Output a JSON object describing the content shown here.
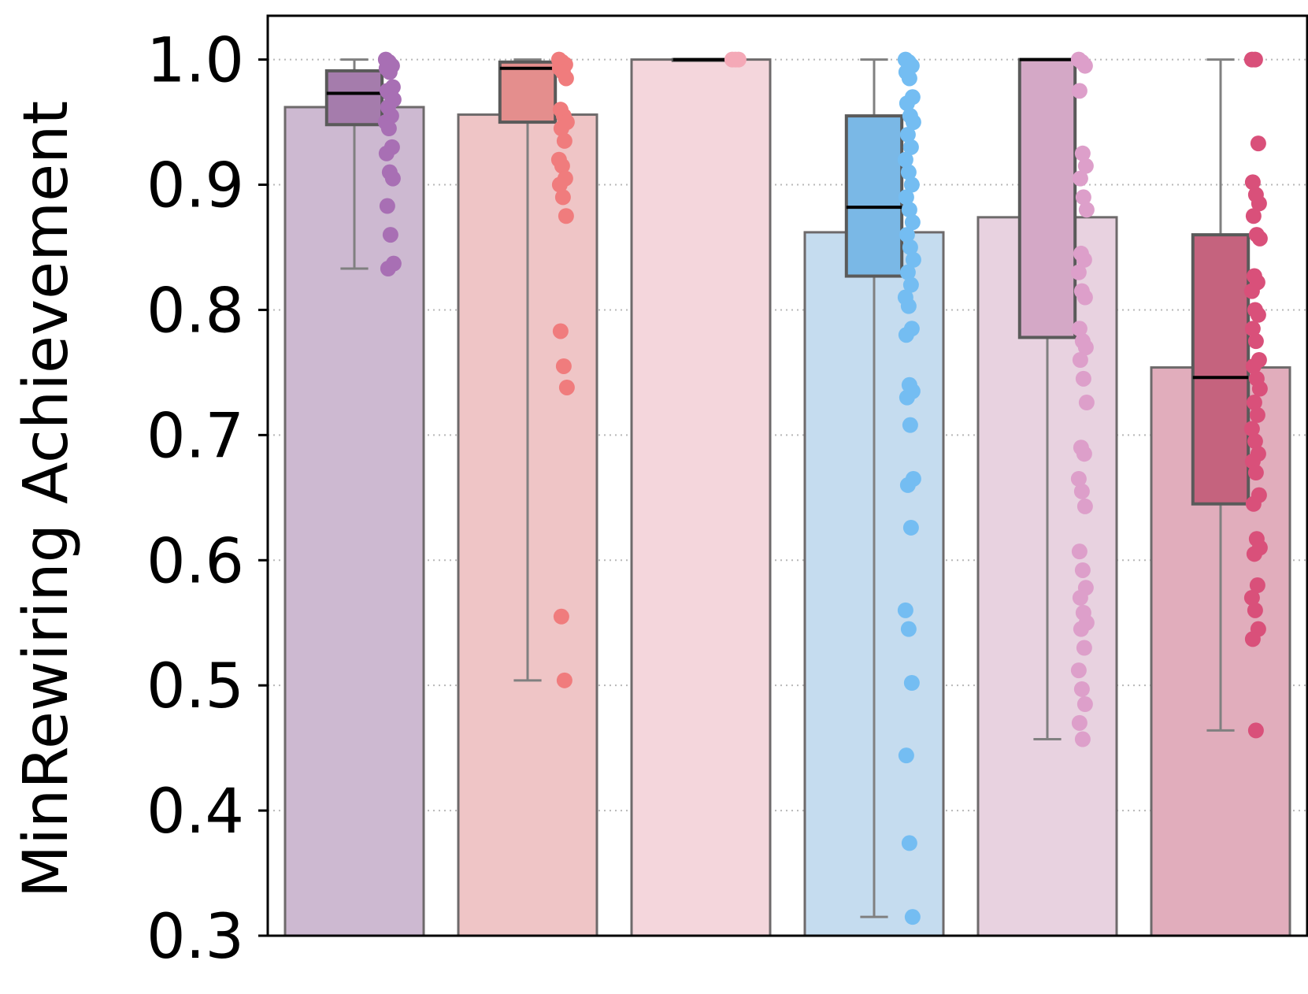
{
  "chart_data": {
    "type": "bar",
    "title": "",
    "xlabel": "",
    "ylabel": "MinRewiring Achievement",
    "ylim": [
      0.3,
      1.035
    ],
    "yticks": [
      "0.3",
      "0.4",
      "0.5",
      "0.6",
      "0.7",
      "0.8",
      "0.9",
      "1.0"
    ],
    "grid": "horizontal dotted",
    "legend": "none",
    "categories": [
      "",
      "",
      "",
      "",
      "",
      ""
    ],
    "series": [
      {
        "bar_value": 0.962,
        "bar_color": "#cdb9d1",
        "box": {
          "whisker_low": 0.833,
          "q1": 0.948,
          "median": 0.973,
          "q3": 0.991,
          "whisker_high": 1.0
        },
        "box_color": "#a57cac",
        "point_color": "#a86fb4",
        "points": [
          1.0,
          0.998,
          0.995,
          0.993,
          0.99,
          0.978,
          0.975,
          0.972,
          0.968,
          0.962,
          0.955,
          0.95,
          0.945,
          0.93,
          0.925,
          0.91,
          0.905,
          0.883,
          0.86,
          0.837,
          0.833
        ]
      },
      {
        "bar_value": 0.956,
        "bar_color": "#efc5c6",
        "box": {
          "whisker_low": 0.504,
          "q1": 0.95,
          "median": 0.993,
          "q3": 0.998,
          "whisker_high": 1.0
        },
        "box_color": "#e48e8d",
        "point_color": "#f07c7d",
        "points": [
          1.0,
          0.998,
          0.996,
          0.993,
          0.99,
          0.985,
          0.96,
          0.955,
          0.95,
          0.945,
          0.935,
          0.92,
          0.915,
          0.905,
          0.9,
          0.89,
          0.875,
          0.783,
          0.755,
          0.738,
          0.555,
          0.504
        ]
      },
      {
        "bar_value": 1.0,
        "bar_color": "#f4d6dc",
        "box": {
          "whisker_low": 1.0,
          "q1": 1.0,
          "median": 1.0,
          "q3": 1.0,
          "whisker_high": 1.0
        },
        "box_color": "#f2b8c2",
        "point_color": "#f4a9b7",
        "points": [
          1.0,
          1.0,
          1.0
        ]
      },
      {
        "bar_value": 0.862,
        "bar_color": "#c5dcef",
        "box": {
          "whisker_low": 0.315,
          "q1": 0.827,
          "median": 0.882,
          "q3": 0.955,
          "whisker_high": 1.0
        },
        "box_color": "#7ab8e6",
        "point_color": "#74bdf2",
        "points": [
          1.0,
          0.998,
          0.995,
          0.99,
          0.985,
          0.97,
          0.965,
          0.955,
          0.95,
          0.94,
          0.93,
          0.92,
          0.91,
          0.9,
          0.89,
          0.88,
          0.87,
          0.86,
          0.85,
          0.84,
          0.83,
          0.82,
          0.81,
          0.803,
          0.785,
          0.78,
          0.74,
          0.735,
          0.73,
          0.708,
          0.665,
          0.66,
          0.626,
          0.56,
          0.545,
          0.502,
          0.444,
          0.374,
          0.315
        ]
      },
      {
        "bar_value": 0.874,
        "bar_color": "#e8d2e0",
        "box": {
          "whisker_low": 0.457,
          "q1": 0.778,
          "median": 1.0,
          "q3": 1.0,
          "whisker_high": 1.0
        },
        "box_color": "#d4a8c6",
        "point_color": "#dd9fca",
        "points": [
          1.0,
          0.998,
          0.995,
          0.975,
          0.925,
          0.915,
          0.905,
          0.89,
          0.88,
          0.845,
          0.84,
          0.83,
          0.815,
          0.81,
          0.785,
          0.775,
          0.77,
          0.76,
          0.745,
          0.726,
          0.69,
          0.685,
          0.665,
          0.655,
          0.643,
          0.607,
          0.592,
          0.578,
          0.57,
          0.558,
          0.55,
          0.545,
          0.53,
          0.512,
          0.497,
          0.485,
          0.47,
          0.457
        ]
      },
      {
        "bar_value": 0.754,
        "bar_color": "#e1adbc",
        "box": {
          "whisker_low": 0.464,
          "q1": 0.645,
          "median": 0.746,
          "q3": 0.86,
          "whisker_high": 1.0
        },
        "box_color": "#c5637e",
        "point_color": "#d9507a",
        "points": [
          1.0,
          1.0,
          0.933,
          0.902,
          0.892,
          0.885,
          0.875,
          0.86,
          0.857,
          0.827,
          0.822,
          0.815,
          0.8,
          0.796,
          0.785,
          0.775,
          0.76,
          0.755,
          0.745,
          0.737,
          0.726,
          0.716,
          0.705,
          0.695,
          0.685,
          0.679,
          0.67,
          0.652,
          0.645,
          0.617,
          0.61,
          0.605,
          0.58,
          0.57,
          0.56,
          0.545,
          0.537,
          0.464
        ]
      }
    ]
  }
}
